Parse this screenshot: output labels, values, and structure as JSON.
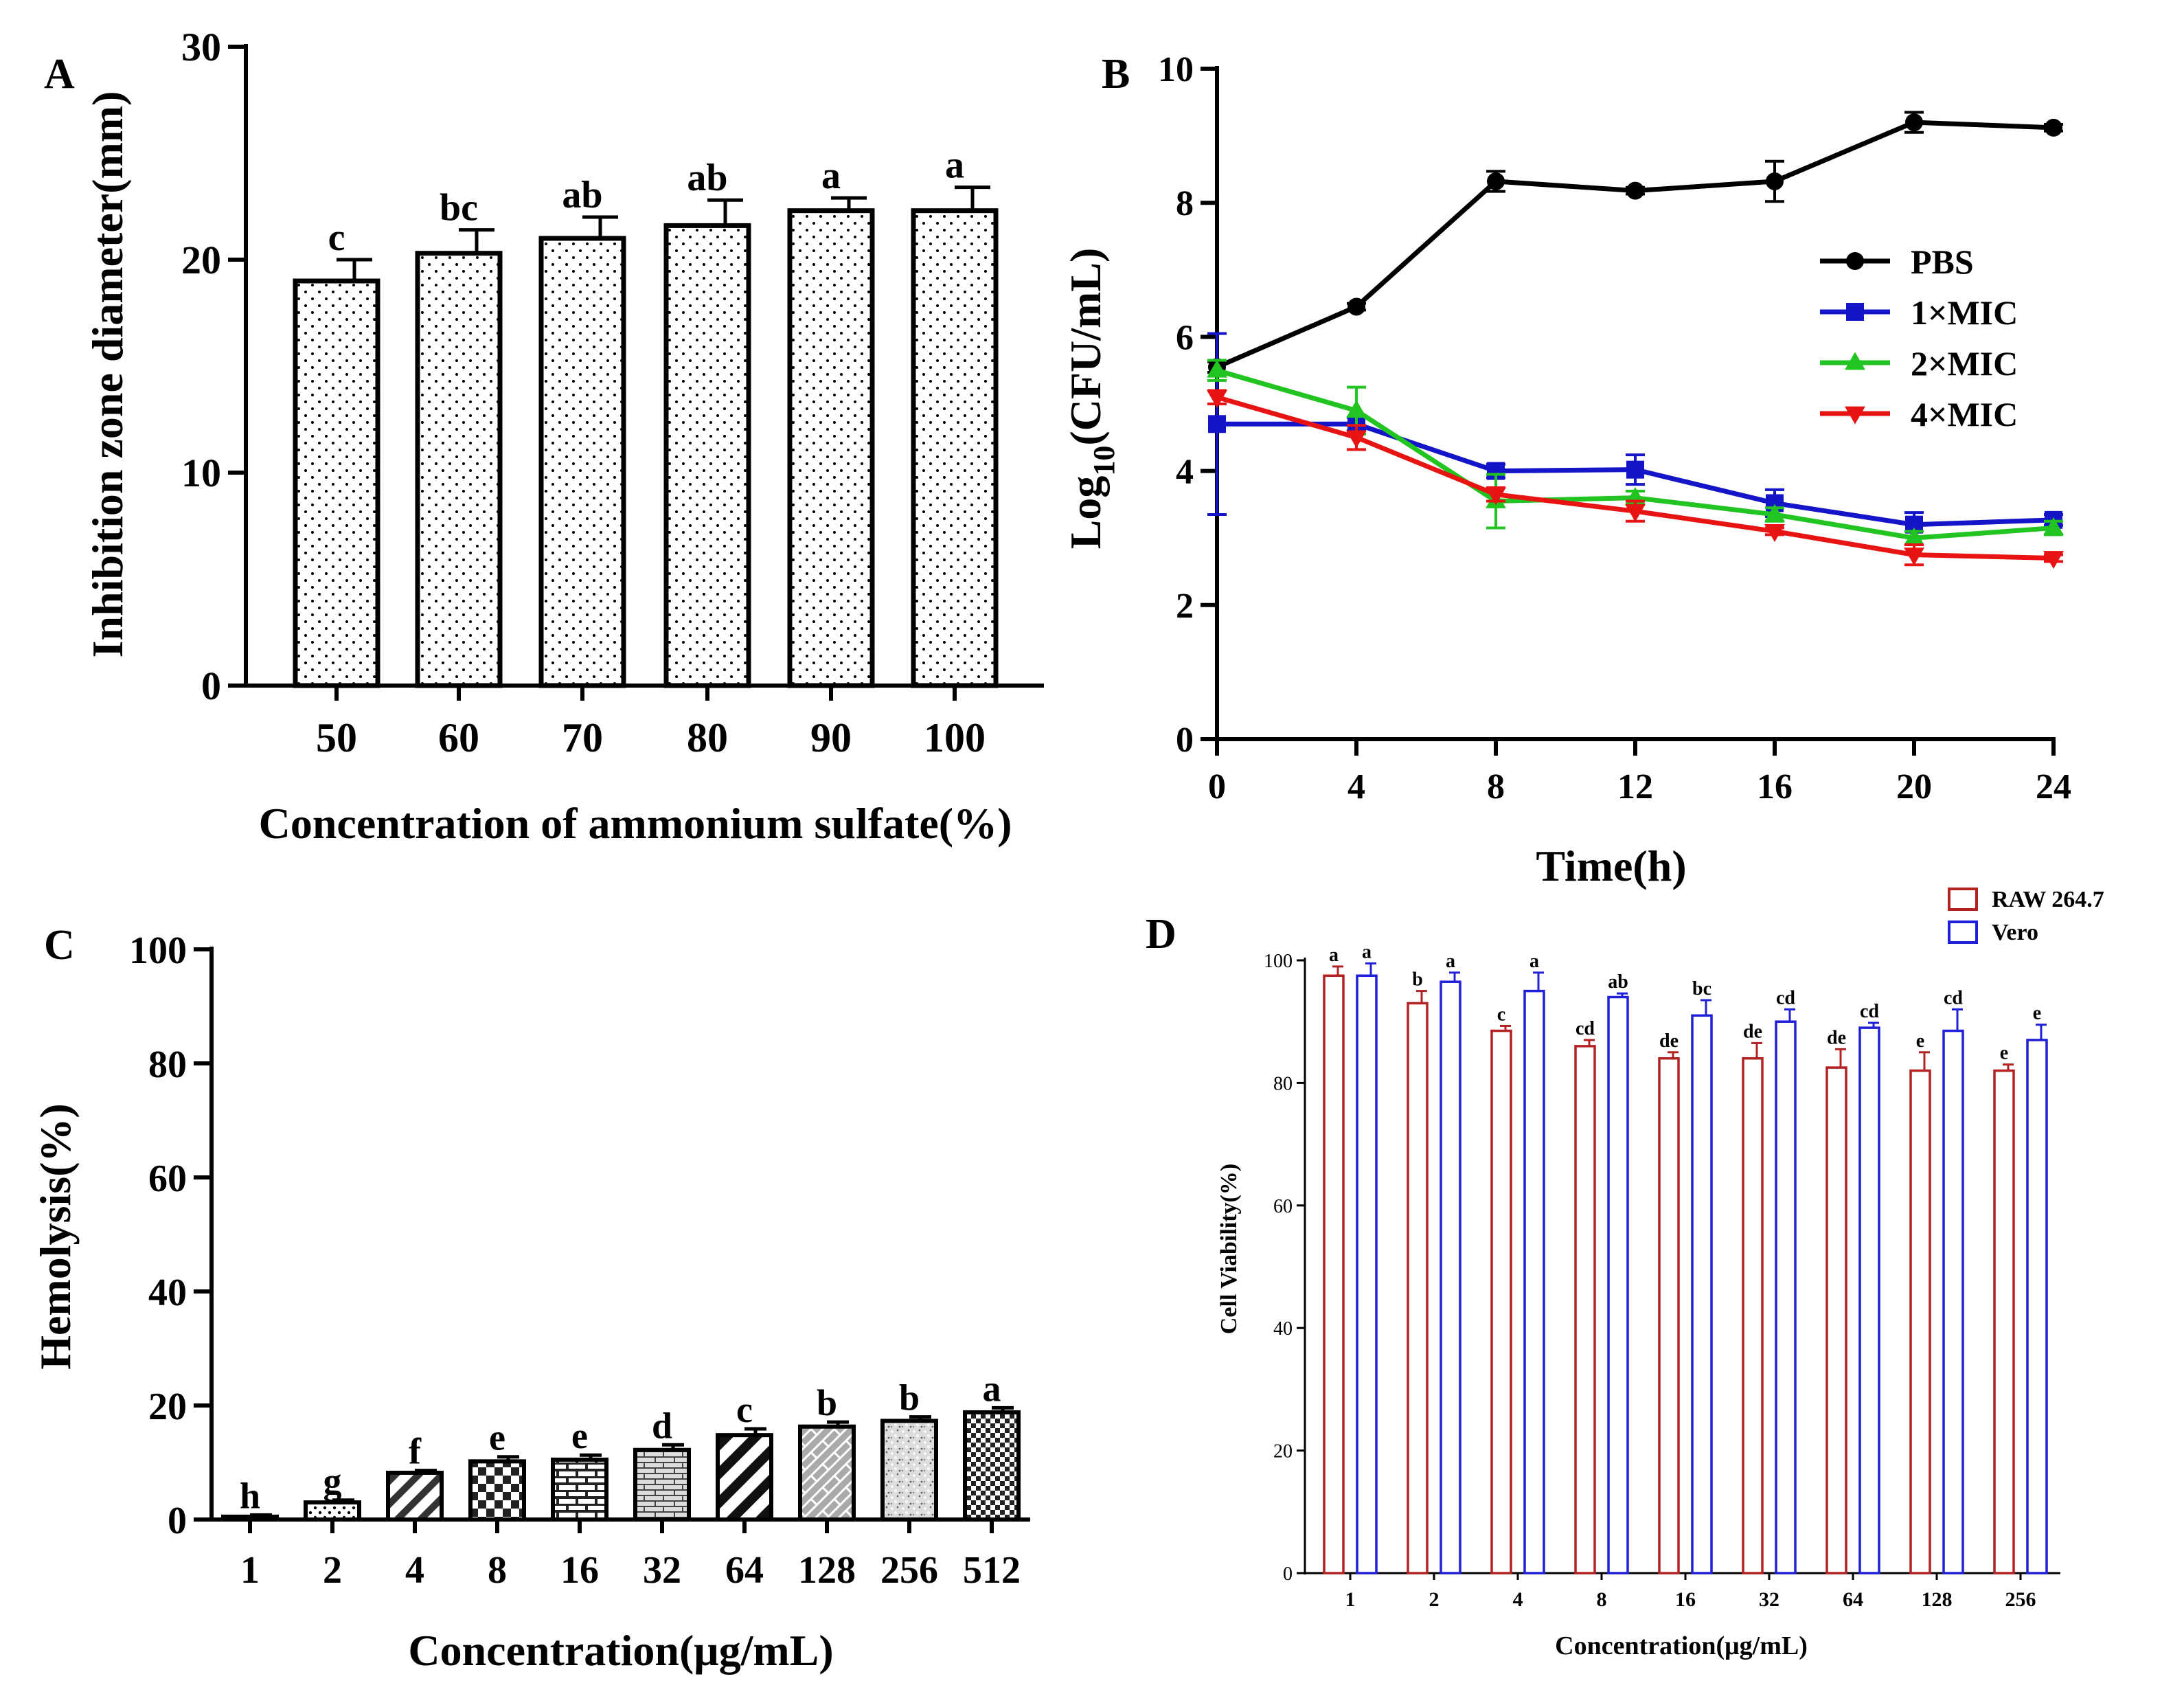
{
  "chart_data": [
    {
      "panel": "A",
      "type": "bar",
      "xlabel": "Concentration of ammonium sulfate(%)",
      "ylabel": "Inhibition zone diameter(mm)",
      "ylim": [
        0,
        30
      ],
      "yticks": [
        0,
        10,
        20,
        30
      ],
      "categories": [
        "50",
        "60",
        "70",
        "80",
        "90",
        "100"
      ],
      "values": [
        19.0,
        20.3,
        21.0,
        21.6,
        22.3,
        22.3
      ],
      "errors": [
        1.0,
        1.1,
        1.0,
        1.2,
        0.6,
        1.1
      ],
      "letters": [
        "c",
        "bc",
        "ab",
        "ab",
        "a",
        "a"
      ]
    },
    {
      "panel": "B",
      "type": "line",
      "xlabel": "Time(h)",
      "ylabel": "Log10(CFU/mL)",
      "ylabel_parts": [
        "Log",
        "10",
        "(CFU/mL)"
      ],
      "x": [
        0,
        4,
        8,
        12,
        16,
        20,
        24
      ],
      "xlim": [
        0,
        24
      ],
      "ylim": [
        0,
        10
      ],
      "yticks": [
        0,
        2,
        4,
        6,
        8,
        10
      ],
      "legend_position": "right",
      "series": [
        {
          "name": "PBS",
          "color": "#000000",
          "marker": "circle",
          "values": [
            5.55,
            6.45,
            8.32,
            8.18,
            8.32,
            9.2,
            9.12
          ],
          "errors": [
            0.08,
            0.05,
            0.15,
            0.05,
            0.3,
            0.15,
            0.05
          ]
        },
        {
          "name": "1×MIC",
          "color": "#1414c8",
          "marker": "square",
          "values": [
            4.7,
            4.7,
            4.0,
            4.02,
            3.52,
            3.2,
            3.27
          ],
          "errors": [
            1.35,
            0.1,
            0.1,
            0.22,
            0.2,
            0.18,
            0.08
          ]
        },
        {
          "name": "2×MIC",
          "color": "#22c422",
          "marker": "triangle-up",
          "values": [
            5.5,
            4.9,
            3.55,
            3.6,
            3.35,
            3.0,
            3.15
          ],
          "errors": [
            0.15,
            0.35,
            0.4,
            0.1,
            0.1,
            0.1,
            0.1
          ]
        },
        {
          "name": "4×MIC",
          "color": "#e81414",
          "marker": "triangle-down",
          "values": [
            5.1,
            4.5,
            3.65,
            3.4,
            3.1,
            2.75,
            2.7
          ],
          "errors": [
            0.1,
            0.18,
            0.1,
            0.15,
            0.05,
            0.15,
            0.05
          ]
        }
      ]
    },
    {
      "panel": "C",
      "type": "bar",
      "xlabel": "Concentration(μg/mL)",
      "ylabel": "Hemolysis(%)",
      "ylim": [
        0,
        100
      ],
      "yticks": [
        0,
        20,
        40,
        60,
        80,
        100
      ],
      "categories": [
        "1",
        "2",
        "4",
        "8",
        "16",
        "32",
        "64",
        "128",
        "256",
        "512"
      ],
      "values": [
        0.5,
        3.0,
        8.2,
        10.2,
        10.5,
        12.2,
        14.8,
        16.3,
        17.3,
        18.8
      ],
      "errors": [
        0.3,
        0.4,
        0.4,
        0.8,
        0.8,
        0.9,
        1.1,
        0.8,
        0.7,
        0.8
      ],
      "letters": [
        "h",
        "g",
        "f",
        "e",
        "e",
        "d",
        "c",
        "b",
        "b",
        "a"
      ],
      "patterns": [
        "solid",
        "dots",
        "diagonal",
        "checker",
        "brick",
        "hbrick",
        "stripe",
        "diagbrick",
        "speckle",
        "checker2"
      ]
    },
    {
      "panel": "D",
      "type": "bar",
      "xlabel": "Concentration(μg/mL)",
      "ylabel": "Cell Viability(%)",
      "ylim": [
        0,
        100
      ],
      "yticks": [
        0,
        20,
        40,
        60,
        80,
        100
      ],
      "categories": [
        "1",
        "2",
        "4",
        "8",
        "16",
        "32",
        "64",
        "128",
        "256"
      ],
      "legend_position": "top-right",
      "series": [
        {
          "name": "RAW 264.7",
          "color": "#b22222",
          "values": [
            97.5,
            93.0,
            88.5,
            86.0,
            84.0,
            84.0,
            82.5,
            82.0,
            82.0
          ],
          "errors": [
            1.5,
            2.0,
            0.8,
            1.0,
            1.0,
            2.5,
            3.0,
            3.0,
            1.0
          ],
          "letters": [
            "a",
            "b",
            "c",
            "cd",
            "de",
            "de",
            "de",
            "e",
            "e"
          ]
        },
        {
          "name": "Vero",
          "color": "#2020d8",
          "values": [
            97.5,
            96.5,
            95.0,
            94.0,
            91.0,
            90.0,
            89.0,
            88.5,
            87.0
          ],
          "errors": [
            2.0,
            1.5,
            3.0,
            0.6,
            2.5,
            2.0,
            0.8,
            3.5,
            2.5
          ],
          "letters": [
            "a",
            "a",
            "a",
            "ab",
            "bc",
            "cd",
            "cd",
            "cd",
            "e"
          ]
        }
      ]
    }
  ]
}
